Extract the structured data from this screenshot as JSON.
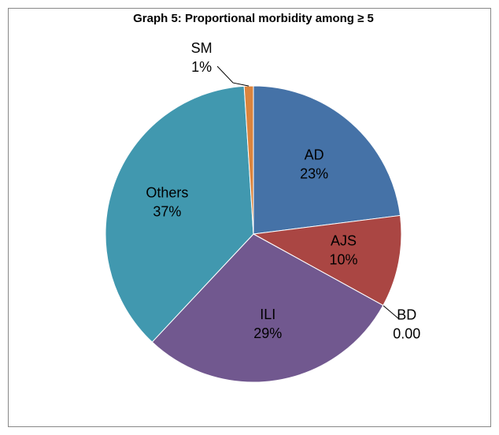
{
  "chart_data": {
    "type": "pie",
    "title": "Graph 5: Proportional  morbidity among ≥ 5",
    "categories": [
      "AD",
      "AJS",
      "BD",
      "ILI",
      "Others",
      "SM"
    ],
    "values": [
      23,
      10,
      0,
      29,
      37,
      1
    ],
    "value_labels": [
      "23%",
      "10%",
      "0.00",
      "29%",
      "37%",
      "1%"
    ],
    "colors": [
      "#4572a7",
      "#aa4643",
      "#89a54e",
      "#71588f",
      "#4198af",
      "#db843d"
    ]
  }
}
